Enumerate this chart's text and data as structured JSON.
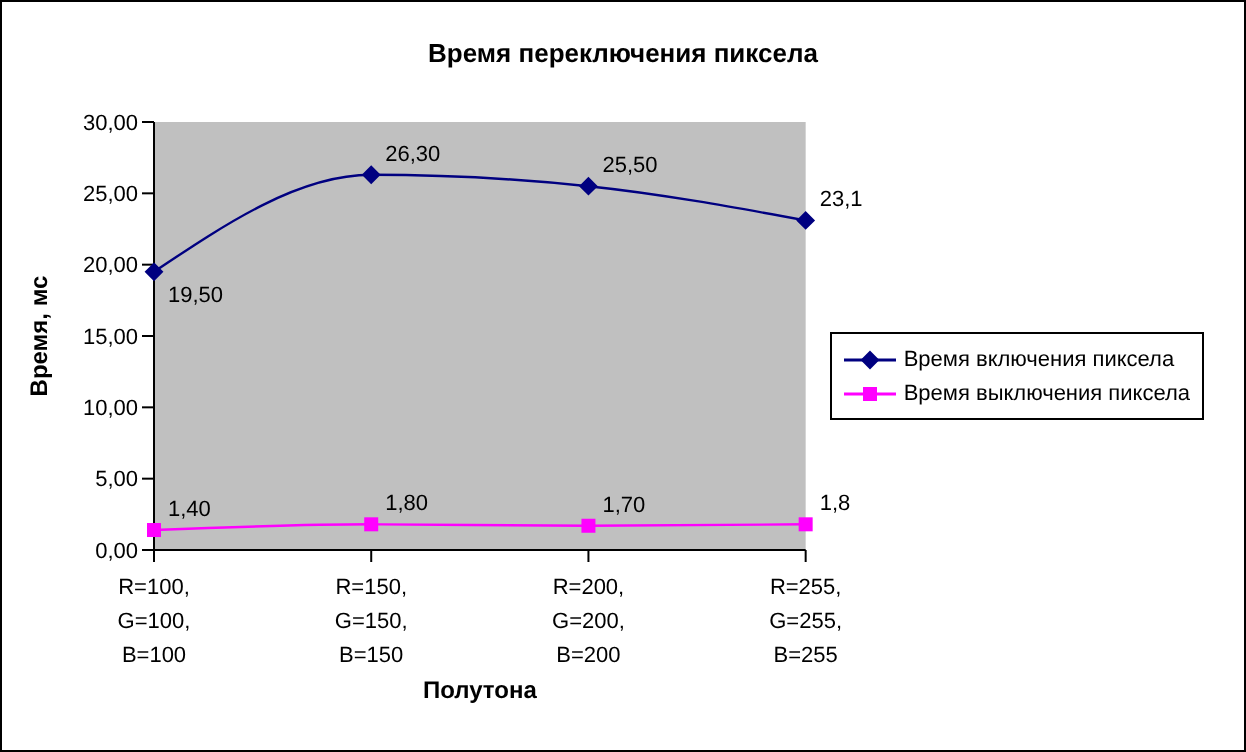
{
  "chart_data": {
    "type": "line",
    "title": "Время переключения пиксела",
    "xlabel": "Полутона",
    "ylabel": "Время, мс",
    "categories": [
      "R=100,\nG=100,\nB=100",
      "R=150,\nG=150,\nB=150",
      "R=200,\nG=200,\nB=200",
      "R=255,\nG=255,\nB=255"
    ],
    "series": [
      {
        "name": "Время включения пиксела",
        "color": "#000080",
        "marker": "diamond",
        "values": [
          19.5,
          26.3,
          25.5,
          23.1
        ],
        "value_labels": [
          "19,50",
          "26,30",
          "25,50",
          "23,1"
        ]
      },
      {
        "name": "Время выключения пиксела",
        "color": "#ff00ff",
        "marker": "square",
        "values": [
          1.4,
          1.8,
          1.7,
          1.8
        ],
        "value_labels": [
          "1,40",
          "1,80",
          "1,70",
          "1,8"
        ]
      }
    ],
    "ylim": [
      0,
      30
    ],
    "yticks": [
      {
        "value": 0,
        "label": "0,00"
      },
      {
        "value": 5,
        "label": "5,00"
      },
      {
        "value": 10,
        "label": "10,00"
      },
      {
        "value": 15,
        "label": "15,00"
      },
      {
        "value": 20,
        "label": "20,00"
      },
      {
        "value": 25,
        "label": "25,00"
      },
      {
        "value": 30,
        "label": "30,00"
      }
    ],
    "grid": false,
    "legend": "right"
  }
}
